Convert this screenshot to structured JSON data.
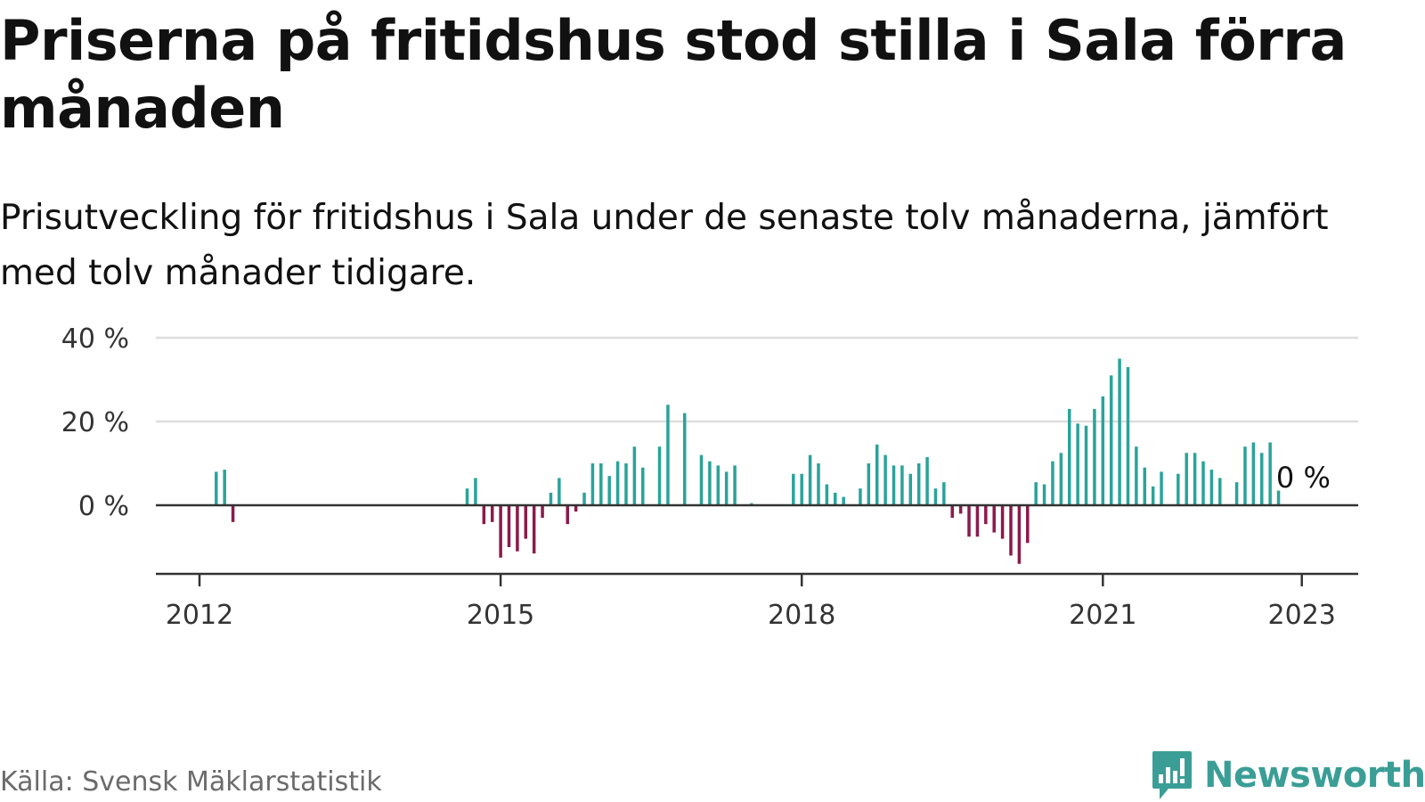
{
  "title": "Priserna på fritidshus stod stilla i Sala förra månaden",
  "subtitle": "Prisutveckling för fritidshus i Sala under de senaste tolv månaderna, jämfört med tolv månader tidigare.",
  "source": "Källa: Svensk Mäklarstatistik",
  "brand": "Newsworthy",
  "colors": {
    "positive": "#2aa39a",
    "negative": "#8b1a4a",
    "grid": "#dddddd",
    "axis": "#333333",
    "brand": "#3a9e96"
  },
  "chart_data": {
    "type": "bar",
    "x_axis": "month",
    "x_ticks": [
      "2012",
      "2015",
      "2018",
      "2021",
      "2023"
    ],
    "y_ticks": [
      "40 %",
      "20 %",
      "0 %"
    ],
    "ylim": [
      -16,
      40
    ],
    "end_label": "0 %",
    "grid": true,
    "series": [
      {
        "values": [
          {
            "x": "2012-03",
            "y": 8
          },
          {
            "x": "2012-04",
            "y": 8.5
          },
          {
            "x": "2012-05",
            "y": -4
          },
          {
            "x": "2014-09",
            "y": 4
          },
          {
            "x": "2014-10",
            "y": 6.5
          },
          {
            "x": "2014-11",
            "y": -4.5
          },
          {
            "x": "2014-12",
            "y": -4
          },
          {
            "x": "2015-01",
            "y": -12.5
          },
          {
            "x": "2015-02",
            "y": -10
          },
          {
            "x": "2015-03",
            "y": -11
          },
          {
            "x": "2015-04",
            "y": -8
          },
          {
            "x": "2015-05",
            "y": -11.5
          },
          {
            "x": "2015-06",
            "y": -3
          },
          {
            "x": "2015-07",
            "y": 3
          },
          {
            "x": "2015-08",
            "y": 6.5
          },
          {
            "x": "2015-09",
            "y": -4.5
          },
          {
            "x": "2015-10",
            "y": -1.5
          },
          {
            "x": "2015-11",
            "y": 3
          },
          {
            "x": "2015-12",
            "y": 10
          },
          {
            "x": "2016-01",
            "y": 10
          },
          {
            "x": "2016-02",
            "y": 7
          },
          {
            "x": "2016-03",
            "y": 10.5
          },
          {
            "x": "2016-04",
            "y": 10
          },
          {
            "x": "2016-05",
            "y": 14
          },
          {
            "x": "2016-06",
            "y": 9
          },
          {
            "x": "2016-08",
            "y": 14
          },
          {
            "x": "2016-09",
            "y": 24
          },
          {
            "x": "2016-11",
            "y": 22
          },
          {
            "x": "2017-01",
            "y": 12
          },
          {
            "x": "2017-02",
            "y": 10.5
          },
          {
            "x": "2017-03",
            "y": 9.5
          },
          {
            "x": "2017-04",
            "y": 8
          },
          {
            "x": "2017-05",
            "y": 9.5
          },
          {
            "x": "2017-07",
            "y": 0.5
          },
          {
            "x": "2017-12",
            "y": 7.5
          },
          {
            "x": "2018-01",
            "y": 7.5
          },
          {
            "x": "2018-02",
            "y": 12
          },
          {
            "x": "2018-03",
            "y": 10
          },
          {
            "x": "2018-04",
            "y": 5
          },
          {
            "x": "2018-05",
            "y": 3
          },
          {
            "x": "2018-06",
            "y": 2
          },
          {
            "x": "2018-08",
            "y": 4
          },
          {
            "x": "2018-09",
            "y": 10
          },
          {
            "x": "2018-10",
            "y": 14.5
          },
          {
            "x": "2018-11",
            "y": 12
          },
          {
            "x": "2018-12",
            "y": 9.5
          },
          {
            "x": "2019-01",
            "y": 9.5
          },
          {
            "x": "2019-02",
            "y": 7.5
          },
          {
            "x": "2019-03",
            "y": 10
          },
          {
            "x": "2019-04",
            "y": 11.5
          },
          {
            "x": "2019-05",
            "y": 4
          },
          {
            "x": "2019-06",
            "y": 5.5
          },
          {
            "x": "2019-07",
            "y": -3
          },
          {
            "x": "2019-08",
            "y": -2
          },
          {
            "x": "2019-09",
            "y": -7.5
          },
          {
            "x": "2019-10",
            "y": -7.5
          },
          {
            "x": "2019-11",
            "y": -4.5
          },
          {
            "x": "2019-12",
            "y": -6.5
          },
          {
            "x": "2020-01",
            "y": -8
          },
          {
            "x": "2020-02",
            "y": -12
          },
          {
            "x": "2020-03",
            "y": -14
          },
          {
            "x": "2020-04",
            "y": -9
          },
          {
            "x": "2020-05",
            "y": 5.5
          },
          {
            "x": "2020-06",
            "y": 5
          },
          {
            "x": "2020-07",
            "y": 10.5
          },
          {
            "x": "2020-08",
            "y": 12.5
          },
          {
            "x": "2020-09",
            "y": 23
          },
          {
            "x": "2020-10",
            "y": 19.5
          },
          {
            "x": "2020-11",
            "y": 19
          },
          {
            "x": "2020-12",
            "y": 23
          },
          {
            "x": "2021-01",
            "y": 26
          },
          {
            "x": "2021-02",
            "y": 31
          },
          {
            "x": "2021-03",
            "y": 35
          },
          {
            "x": "2021-04",
            "y": 33
          },
          {
            "x": "2021-05",
            "y": 14
          },
          {
            "x": "2021-06",
            "y": 9
          },
          {
            "x": "2021-07",
            "y": 4.5
          },
          {
            "x": "2021-08",
            "y": 8
          },
          {
            "x": "2021-10",
            "y": 7.5
          },
          {
            "x": "2021-11",
            "y": 12.5
          },
          {
            "x": "2021-12",
            "y": 12.5
          },
          {
            "x": "2022-01",
            "y": 10.5
          },
          {
            "x": "2022-02",
            "y": 8.5
          },
          {
            "x": "2022-03",
            "y": 6.5
          },
          {
            "x": "2022-05",
            "y": 5.5
          },
          {
            "x": "2022-06",
            "y": 14
          },
          {
            "x": "2022-07",
            "y": 15
          },
          {
            "x": "2022-08",
            "y": 12.5
          },
          {
            "x": "2022-09",
            "y": 15
          },
          {
            "x": "2022-10",
            "y": 3.5
          },
          {
            "x": "2022-11",
            "y": 0
          }
        ]
      }
    ]
  }
}
